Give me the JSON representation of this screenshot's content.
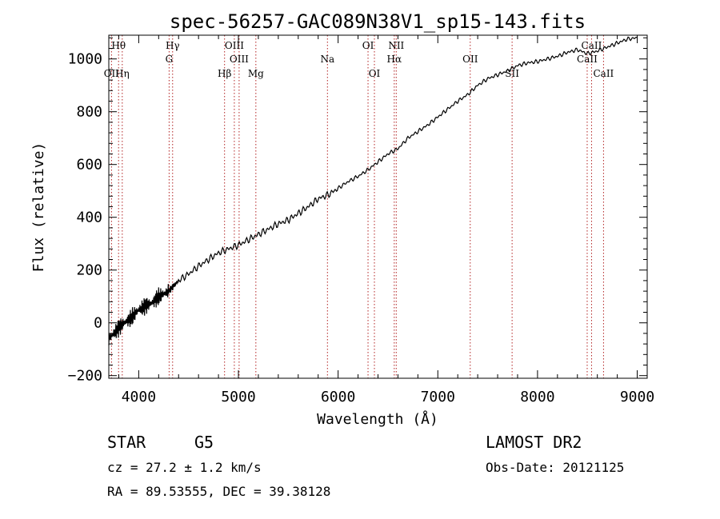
{
  "chart_data": {
    "type": "line",
    "title": "spec-56257-GAC089N38V1_sp15-143.fits",
    "xlabel": "Wavelength (Å)",
    "ylabel": "Flux (relative)",
    "xlim": [
      3700,
      9100
    ],
    "ylim": [
      -210,
      1090
    ],
    "xticks": [
      4000,
      5000,
      6000,
      7000,
      8000,
      9000
    ],
    "yticks": [
      -200,
      0,
      200,
      400,
      600,
      800,
      1000
    ],
    "grid": false,
    "line_color": "#000000",
    "marker_color": "#b22222",
    "series": [
      {
        "x": [
          3700,
          3750,
          3800,
          3850,
          3900,
          3950,
          4000,
          4050,
          4100,
          4150,
          4200,
          4250,
          4300,
          4350,
          4400,
          4500,
          4600,
          4700,
          4800,
          4900,
          5000,
          5100,
          5200,
          5300,
          5400,
          5500,
          5600,
          5700,
          5800,
          5900,
          6000,
          6100,
          6200,
          6300,
          6400,
          6500,
          6600,
          6700,
          6800,
          6900,
          7000,
          7100,
          7200,
          7300,
          7400,
          7500,
          7600,
          7700,
          7800,
          7900,
          8000,
          8100,
          8200,
          8300,
          8400,
          8500,
          8600,
          8700,
          8800,
          8900,
          9000
        ],
        "y": [
          -60,
          -40,
          -20,
          0,
          10,
          30,
          50,
          60,
          70,
          80,
          100,
          110,
          120,
          140,
          160,
          185,
          215,
          240,
          265,
          280,
          295,
          315,
          335,
          355,
          375,
          390,
          415,
          440,
          470,
          485,
          510,
          535,
          555,
          580,
          610,
          640,
          660,
          700,
          725,
          750,
          780,
          810,
          840,
          865,
          900,
          925,
          940,
          955,
          975,
          985,
          990,
          1000,
          1010,
          1025,
          1035,
          1020,
          1030,
          1045,
          1060,
          1075,
          1080
        ]
      }
    ],
    "lines": [
      {
        "label": "Hθ",
        "x": 3798,
        "row": 1
      },
      {
        "label": "OII",
        "x": 3727,
        "row": 3
      },
      {
        "label": "Hη",
        "x": 3835,
        "row": 3
      },
      {
        "label": "Hγ",
        "x": 4340,
        "row": 1
      },
      {
        "label": "G",
        "x": 4305,
        "row": 2
      },
      {
        "label": "OIII",
        "x": 4959,
        "row": 1
      },
      {
        "label": "OIII",
        "x": 5007,
        "row": 2
      },
      {
        "label": "Hβ",
        "x": 4861,
        "row": 3
      },
      {
        "label": "Mg",
        "x": 5175,
        "row": 3
      },
      {
        "label": "Na",
        "x": 5893,
        "row": 2
      },
      {
        "label": "OI",
        "x": 6300,
        "row": 1
      },
      {
        "label": "OI",
        "x": 6364,
        "row": 3
      },
      {
        "label": "NII",
        "x": 6583,
        "row": 1
      },
      {
        "label": "Hα",
        "x": 6563,
        "row": 2
      },
      {
        "label": "OII",
        "x": 7325,
        "row": 2
      },
      {
        "label": "SII",
        "x": 7745,
        "row": 3
      },
      {
        "label": "CaII",
        "x": 8542,
        "row": 1
      },
      {
        "label": "CaII",
        "x": 8498,
        "row": 2
      },
      {
        "label": "CaII",
        "x": 8662,
        "row": 3
      }
    ]
  },
  "footer": {
    "class": "STAR",
    "subclass": "G5",
    "survey": "LAMOST DR2",
    "cz": "cz = 27.2 ± 1.2 km/s",
    "obs_date": "Obs-Date: 20121125",
    "radec": "RA =  89.53555, DEC =  39.38128"
  }
}
